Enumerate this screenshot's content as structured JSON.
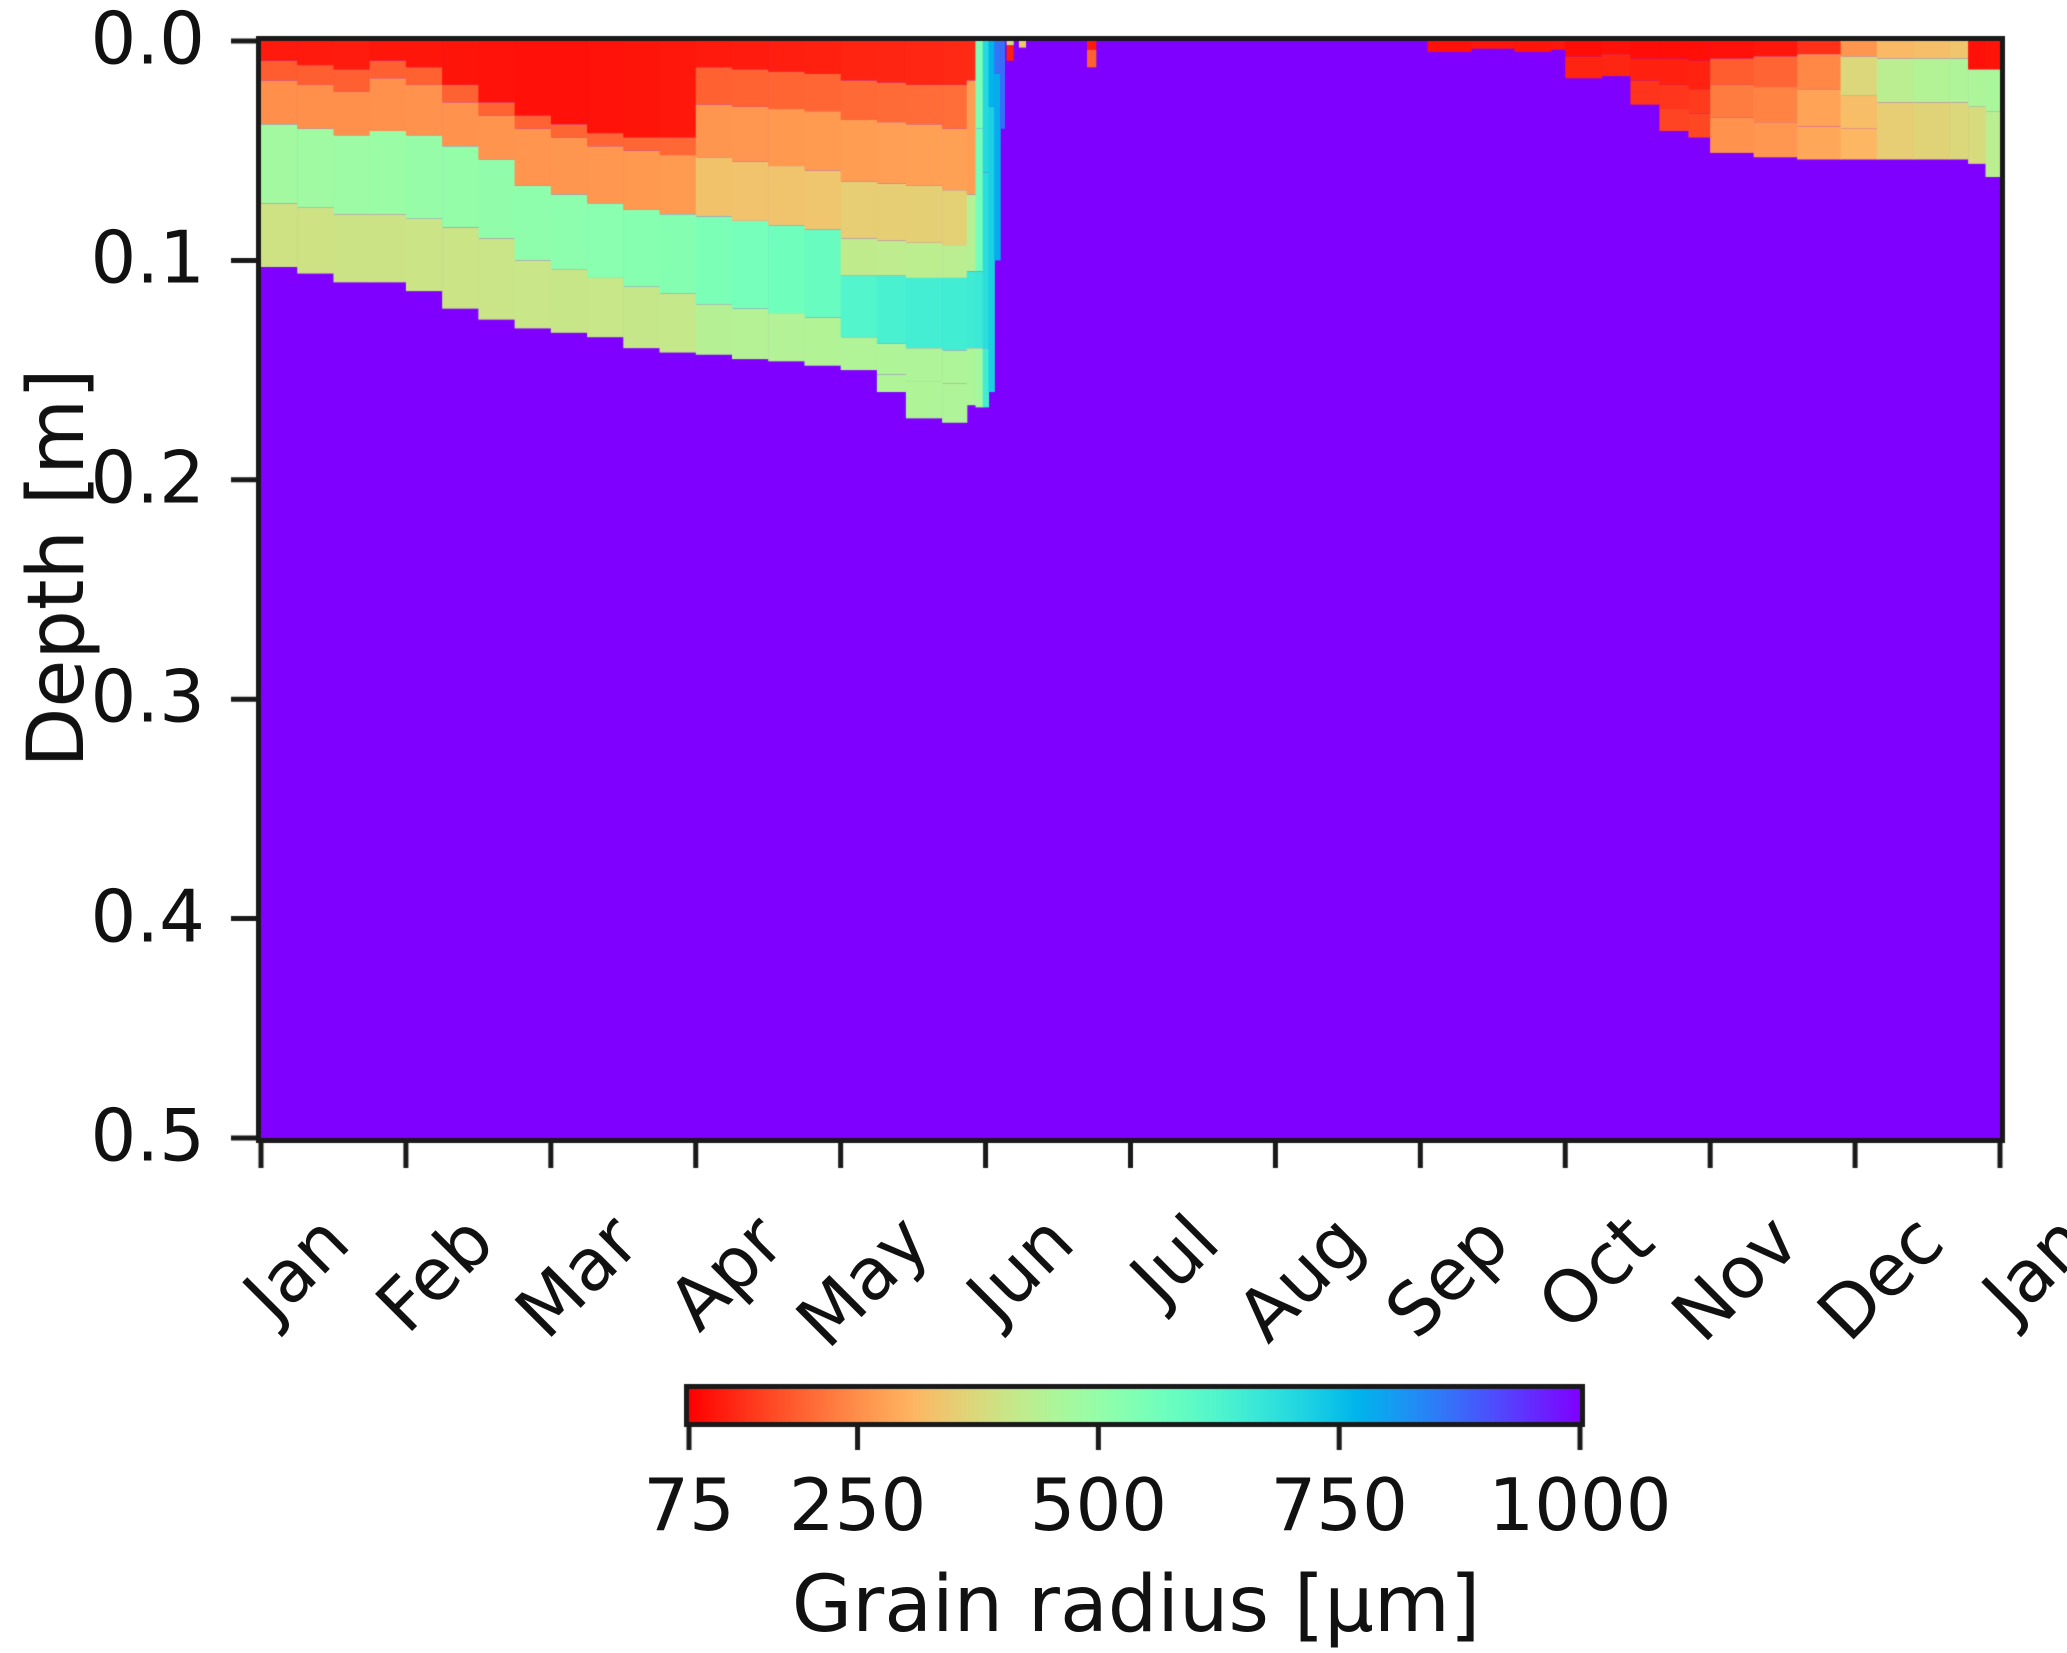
{
  "chart_data": {
    "type": "heatmap",
    "title": "",
    "xlabel": "",
    "ylabel": "Depth [m]",
    "x_tick_labels": [
      "Jan",
      "Feb",
      "Mar",
      "Apr",
      "May",
      "Jun",
      "Jul",
      "Aug",
      "Sep",
      "Oct",
      "Nov",
      "Dec",
      "Jan"
    ],
    "x_range_months": [
      0,
      12
    ],
    "ylim": [
      0.0,
      0.5
    ],
    "y_ticks": [
      0.0,
      0.1,
      0.2,
      0.3,
      0.4,
      0.5
    ],
    "y_tick_labels": [
      "0.0",
      "0.1",
      "0.2",
      "0.3",
      "0.4",
      "0.5"
    ],
    "grid": false,
    "legend": "none",
    "colorbar": {
      "label": "Grain radius [μm]",
      "orientation": "horizontal",
      "min": 75,
      "max": 1000,
      "ticks": [
        75,
        250,
        500,
        750,
        1000
      ],
      "tick_labels": [
        "75",
        "250",
        "500",
        "750",
        "1000"
      ],
      "colormap": "rainbow_r",
      "left_color": "#ff0000",
      "right_color": "#8000ff"
    },
    "background_radius_um": 1000,
    "description": "Simulated snowpack grain radius (um) versus depth below surface over one year. Purple (1000 um) is the underlying coarse ice/firn; winter snow layers (red=fresh ~75-120 um) metamorphose toward green/cyan before melting out in early June; thin fresh-snow layers reappear from September and build a ~6 cm pack by December.",
    "columns_format": "each column = {t: time in months from Jan 1 (0..12), layers: [[bottom_depth_m, grain_radius_um], ...] from surface downward; below last layer the profile is background (1000 um) to 0.5 m}",
    "columns": [
      {
        "t": 0.0,
        "layers": [
          [
            0.009,
            105
          ],
          [
            0.018,
            185
          ],
          [
            0.038,
            250
          ],
          [
            0.074,
            475
          ],
          [
            0.103,
            395
          ]
        ]
      },
      {
        "t": 0.25,
        "layers": [
          [
            0.011,
            105
          ],
          [
            0.02,
            186
          ],
          [
            0.04,
            251
          ],
          [
            0.076,
            480
          ],
          [
            0.106,
            396
          ]
        ]
      },
      {
        "t": 0.5,
        "layers": [
          [
            0.013,
            107
          ],
          [
            0.023,
            188
          ],
          [
            0.043,
            252
          ],
          [
            0.079,
            485
          ],
          [
            0.11,
            398
          ]
        ]
      },
      {
        "t": 0.75,
        "layers": [
          [
            0.009,
            100
          ],
          [
            0.017,
            189
          ],
          [
            0.041,
            253
          ],
          [
            0.079,
            490
          ],
          [
            0.11,
            398
          ]
        ]
      },
      {
        "t": 1.0,
        "layers": [
          [
            0.012,
            100
          ],
          [
            0.02,
            190
          ],
          [
            0.043,
            254
          ],
          [
            0.081,
            495
          ],
          [
            0.114,
            400
          ]
        ]
      },
      {
        "t": 1.25,
        "layers": [
          [
            0.02,
            98
          ],
          [
            0.028,
            191
          ],
          [
            0.048,
            256
          ],
          [
            0.085,
            500
          ],
          [
            0.122,
            402
          ]
        ]
      },
      {
        "t": 1.5,
        "layers": [
          [
            0.028,
            96
          ],
          [
            0.034,
            192
          ],
          [
            0.054,
            258
          ],
          [
            0.09,
            505
          ],
          [
            0.127,
            404
          ]
        ]
      },
      {
        "t": 1.75,
        "layers": [
          [
            0.034,
            95
          ],
          [
            0.04,
            193
          ],
          [
            0.066,
            259
          ],
          [
            0.1,
            510
          ],
          [
            0.131,
            405
          ]
        ]
      },
      {
        "t": 2.0,
        "layers": [
          [
            0.038,
            95
          ],
          [
            0.044,
            194
          ],
          [
            0.07,
            260
          ],
          [
            0.104,
            515
          ],
          [
            0.133,
            407
          ]
        ]
      },
      {
        "t": 2.25,
        "layers": [
          [
            0.042,
            96
          ],
          [
            0.048,
            195
          ],
          [
            0.074,
            262
          ],
          [
            0.108,
            520
          ],
          [
            0.135,
            408
          ]
        ]
      },
      {
        "t": 2.5,
        "layers": [
          [
            0.044,
            98
          ],
          [
            0.05,
            196
          ],
          [
            0.077,
            264
          ],
          [
            0.112,
            525
          ],
          [
            0.14,
            410
          ]
        ]
      },
      {
        "t": 2.75,
        "layers": [
          [
            0.044,
            102
          ],
          [
            0.052,
            198
          ],
          [
            0.079,
            266
          ],
          [
            0.115,
            530
          ],
          [
            0.142,
            412
          ]
        ]
      },
      {
        "t": 3.0,
        "layers": [
          [
            0.012,
            105
          ],
          [
            0.029,
            190
          ],
          [
            0.053,
            260
          ],
          [
            0.08,
            330
          ],
          [
            0.12,
            545
          ],
          [
            0.143,
            440
          ]
        ]
      },
      {
        "t": 3.25,
        "layers": [
          [
            0.013,
            107
          ],
          [
            0.03,
            192
          ],
          [
            0.055,
            262
          ],
          [
            0.082,
            332
          ],
          [
            0.122,
            555
          ],
          [
            0.145,
            442
          ]
        ]
      },
      {
        "t": 3.5,
        "layers": [
          [
            0.014,
            110
          ],
          [
            0.031,
            194
          ],
          [
            0.057,
            264
          ],
          [
            0.084,
            334
          ],
          [
            0.124,
            565
          ],
          [
            0.146,
            444
          ]
        ]
      },
      {
        "t": 3.75,
        "layers": [
          [
            0.015,
            112
          ],
          [
            0.032,
            196
          ],
          [
            0.059,
            266
          ],
          [
            0.086,
            336
          ],
          [
            0.126,
            580
          ],
          [
            0.148,
            446
          ]
        ]
      },
      {
        "t": 4.0,
        "layers": [
          [
            0.018,
            115
          ],
          [
            0.036,
            200
          ],
          [
            0.064,
            270
          ],
          [
            0.09,
            350
          ],
          [
            0.107,
            420
          ],
          [
            0.135,
            620
          ],
          [
            0.15,
            448
          ]
        ]
      },
      {
        "t": 4.25,
        "layers": [
          [
            0.019,
            118
          ],
          [
            0.037,
            202
          ],
          [
            0.065,
            272
          ],
          [
            0.091,
            352
          ],
          [
            0.107,
            424
          ],
          [
            0.138,
            635
          ],
          [
            0.152,
            450
          ],
          [
            0.16,
            450
          ]
        ]
      },
      {
        "t": 4.45,
        "layers": [
          [
            0.02,
            120
          ],
          [
            0.038,
            204
          ],
          [
            0.066,
            274
          ],
          [
            0.092,
            354
          ],
          [
            0.108,
            428
          ],
          [
            0.14,
            645
          ],
          [
            0.155,
            452
          ],
          [
            0.172,
            450
          ]
        ]
      },
      {
        "t": 4.7,
        "layers": [
          [
            0.02,
            122
          ],
          [
            0.04,
            206
          ],
          [
            0.068,
            276
          ],
          [
            0.093,
            356
          ],
          [
            0.108,
            430
          ],
          [
            0.141,
            650
          ],
          [
            0.156,
            453
          ],
          [
            0.174,
            452
          ]
        ]
      },
      {
        "t": 4.87,
        "layers": [
          [
            0.018,
            125
          ],
          [
            0.07,
            270
          ],
          [
            0.105,
            440
          ],
          [
            0.14,
            655
          ],
          [
            0.166,
            455
          ]
        ]
      },
      {
        "t": 4.93,
        "layers": [
          [
            0.04,
            545
          ],
          [
            0.105,
            560
          ],
          [
            0.14,
            660
          ],
          [
            0.167,
            470
          ]
        ]
      },
      {
        "t": 4.98,
        "layers": [
          [
            0.06,
            700
          ],
          [
            0.14,
            690
          ],
          [
            0.167,
            650
          ]
        ]
      },
      {
        "t": 5.02,
        "layers": [
          [
            0.03,
            770
          ],
          [
            0.16,
            720
          ]
        ]
      },
      {
        "t": 5.06,
        "layers": [
          [
            0.015,
            860
          ],
          [
            0.1,
            780
          ]
        ]
      },
      {
        "t": 5.1,
        "layers": [
          [
            0.04,
            870
          ]
        ]
      },
      {
        "t": 5.13,
        "layers": []
      },
      {
        "t": 5.145,
        "layers": [
          [
            0.002,
            380
          ],
          [
            0.009,
            110
          ]
        ]
      },
      {
        "t": 5.19,
        "layers": []
      },
      {
        "t": 5.23,
        "layers": [
          [
            0.003,
            340
          ]
        ]
      },
      {
        "t": 5.275,
        "layers": []
      },
      {
        "t": 5.7,
        "layers": [
          [
            0.004,
            105
          ],
          [
            0.012,
            190
          ]
        ]
      },
      {
        "t": 5.76,
        "layers": []
      },
      {
        "t": 8.05,
        "layers": [
          [
            0.005,
            95
          ]
        ]
      },
      {
        "t": 8.35,
        "layers": [
          [
            0.0035,
            100
          ]
        ]
      },
      {
        "t": 8.65,
        "layers": [
          [
            0.005,
            98
          ]
        ]
      },
      {
        "t": 8.9,
        "layers": [
          [
            0.004,
            102
          ]
        ]
      },
      {
        "t": 9.0,
        "layers": [
          [
            0.007,
            90
          ],
          [
            0.017,
            115
          ]
        ]
      },
      {
        "t": 9.25,
        "layers": [
          [
            0.006,
            93
          ],
          [
            0.016,
            118
          ]
        ]
      },
      {
        "t": 9.45,
        "layers": [
          [
            0.008,
            90
          ],
          [
            0.018,
            112
          ],
          [
            0.029,
            135
          ]
        ]
      },
      {
        "t": 9.65,
        "layers": [
          [
            0.008,
            90
          ],
          [
            0.02,
            112
          ],
          [
            0.031,
            138
          ],
          [
            0.041,
            155
          ]
        ]
      },
      {
        "t": 9.85,
        "layers": [
          [
            0.009,
            92
          ],
          [
            0.022,
            114
          ],
          [
            0.033,
            142
          ],
          [
            0.044,
            158
          ]
        ]
      },
      {
        "t": 10.0,
        "layers": [
          [
            0.008,
            95
          ],
          [
            0.02,
            185
          ],
          [
            0.035,
            225
          ],
          [
            0.051,
            255
          ]
        ]
      },
      {
        "t": 10.3,
        "layers": [
          [
            0.007,
            100
          ],
          [
            0.021,
            195
          ],
          [
            0.037,
            235
          ],
          [
            0.053,
            262
          ]
        ]
      },
      {
        "t": 10.6,
        "layers": [
          [
            0.006,
            130
          ],
          [
            0.022,
            240
          ],
          [
            0.039,
            280
          ],
          [
            0.054,
            285
          ]
        ]
      },
      {
        "t": 10.9,
        "layers": [
          [
            0.007,
            260
          ],
          [
            0.025,
            370
          ],
          [
            0.04,
            320
          ],
          [
            0.054,
            310
          ]
        ]
      },
      {
        "t": 11.15,
        "layers": [
          [
            0.008,
            315
          ],
          [
            0.028,
            430
          ],
          [
            0.054,
            350
          ]
        ]
      },
      {
        "t": 11.4,
        "layers": [
          [
            0.008,
            325
          ],
          [
            0.028,
            445
          ],
          [
            0.054,
            362
          ]
        ]
      },
      {
        "t": 11.65,
        "layers": [
          [
            0.008,
            335
          ],
          [
            0.028,
            452
          ],
          [
            0.054,
            372
          ]
        ]
      },
      {
        "t": 11.78,
        "layers": [
          [
            0.013,
            95
          ],
          [
            0.03,
            455
          ],
          [
            0.056,
            378
          ]
        ]
      },
      {
        "t": 11.9,
        "layers": [
          [
            0.013,
            98
          ],
          [
            0.032,
            460
          ],
          [
            0.062,
            430
          ]
        ]
      }
    ]
  }
}
